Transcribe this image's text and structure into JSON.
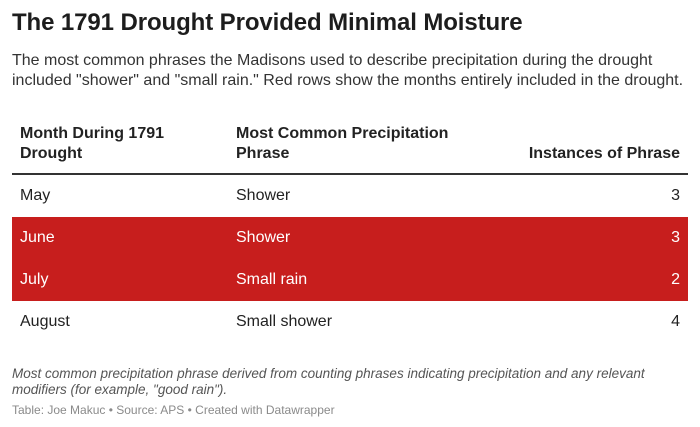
{
  "header": {
    "title": "The 1791 Drought Provided Minimal Moisture",
    "subtitle": "The most common phrases the Madisons used to describe precipitation during the drought included \"shower\" and \"small rain.\" Red rows show the months entirely included in the drought."
  },
  "chart_data": {
    "type": "table",
    "columns": [
      "Month During 1791 Drought",
      "Most Common Precipitation Phrase",
      "Instances of Phrase"
    ],
    "rows": [
      {
        "month": "May",
        "phrase": "Shower",
        "instances": "3",
        "highlighted": false
      },
      {
        "month": "June",
        "phrase": "Shower",
        "instances": "3",
        "highlighted": true
      },
      {
        "month": "July",
        "phrase": "Small rain",
        "instances": "2",
        "highlighted": true
      },
      {
        "month": "August",
        "phrase": "Small shower",
        "instances": "4",
        "highlighted": false
      }
    ]
  },
  "footer": {
    "notes": "Most common precipitation phrase derived from counting phrases indicating precipitation and any relevant modifiers (for example, \"good rain\").",
    "byline": "Table: Joe Makuc • Source: APS • Created with Datawrapper"
  },
  "colors": {
    "highlight": "#c71e1d",
    "highlight_text": "#ffffff"
  }
}
